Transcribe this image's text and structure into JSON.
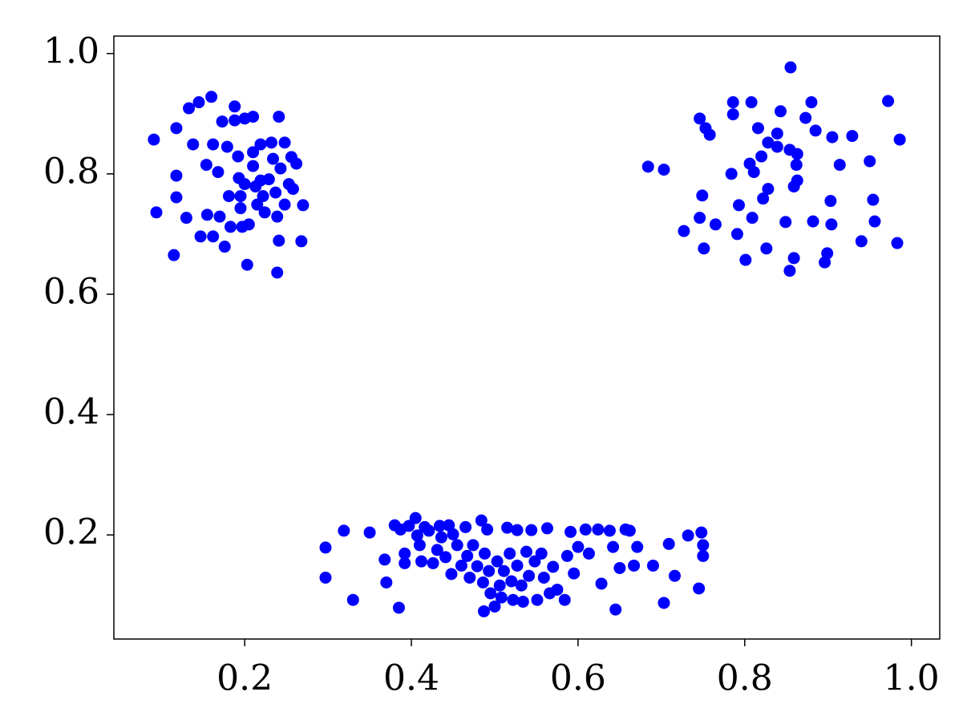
{
  "chart_data": {
    "type": "scatter",
    "color": "#0000ff",
    "x": [
      0.091,
      0.094,
      0.115,
      0.118,
      0.118,
      0.118,
      0.13,
      0.133,
      0.138,
      0.145,
      0.147,
      0.155,
      0.154,
      0.16,
      0.162,
      0.162,
      0.168,
      0.17,
      0.173,
      0.176,
      0.179,
      0.181,
      0.183,
      0.188,
      0.188,
      0.192,
      0.193,
      0.195,
      0.195,
      0.197,
      0.2,
      0.203,
      0.205,
      0.21,
      0.21,
      0.21,
      0.213,
      0.215,
      0.219,
      0.222,
      0.224,
      0.229,
      0.232,
      0.234,
      0.237,
      0.239,
      0.241,
      0.239,
      0.241,
      0.243,
      0.248,
      0.248,
      0.253,
      0.256,
      0.258,
      0.262,
      0.268,
      0.27,
      0.2,
      0.219,
      0.855,
      0.972,
      0.786,
      0.808,
      0.88,
      0.786,
      0.843,
      0.873,
      0.746,
      0.753,
      0.758,
      0.816,
      0.839,
      0.885,
      0.905,
      0.929,
      0.986,
      0.828,
      0.839,
      0.854,
      0.863,
      0.82,
      0.684,
      0.703,
      0.806,
      0.811,
      0.784,
      0.862,
      0.914,
      0.95,
      0.863,
      0.859,
      0.828,
      0.749,
      0.903,
      0.954,
      0.793,
      0.822,
      0.746,
      0.765,
      0.809,
      0.849,
      0.882,
      0.904,
      0.956,
      0.727,
      0.791,
      0.751,
      0.826,
      0.94,
      0.983,
      0.801,
      0.859,
      0.899,
      0.896,
      0.854,
      0.297,
      0.297,
      0.319,
      0.33,
      0.35,
      0.368,
      0.37,
      0.38,
      0.385,
      0.387,
      0.392,
      0.392,
      0.397,
      0.405,
      0.407,
      0.41,
      0.412,
      0.416,
      0.421,
      0.426,
      0.431,
      0.434,
      0.436,
      0.441,
      0.445,
      0.448,
      0.45,
      0.455,
      0.46,
      0.465,
      0.467,
      0.47,
      0.474,
      0.479,
      0.484,
      0.486,
      0.487,
      0.488,
      0.491,
      0.493,
      0.495,
      0.5,
      0.503,
      0.506,
      0.508,
      0.511,
      0.515,
      0.518,
      0.52,
      0.522,
      0.527,
      0.527,
      0.532,
      0.534,
      0.538,
      0.541,
      0.544,
      0.548,
      0.551,
      0.556,
      0.559,
      0.563,
      0.566,
      0.57,
      0.575,
      0.584,
      0.587,
      0.591,
      0.595,
      0.6,
      0.609,
      0.613,
      0.624,
      0.628,
      0.638,
      0.642,
      0.645,
      0.65,
      0.657,
      0.662,
      0.667,
      0.671,
      0.69,
      0.703,
      0.709,
      0.716,
      0.732,
      0.745,
      0.748,
      0.75,
      0.75
    ],
    "values": [
      0.857,
      0.736,
      0.665,
      0.876,
      0.797,
      0.761,
      0.727,
      0.909,
      0.849,
      0.919,
      0.696,
      0.732,
      0.815,
      0.928,
      0.849,
      0.696,
      0.803,
      0.729,
      0.887,
      0.679,
      0.845,
      0.763,
      0.712,
      0.912,
      0.889,
      0.829,
      0.793,
      0.763,
      0.743,
      0.712,
      0.892,
      0.649,
      0.716,
      0.895,
      0.836,
      0.813,
      0.779,
      0.749,
      0.849,
      0.763,
      0.736,
      0.791,
      0.852,
      0.825,
      0.769,
      0.729,
      0.895,
      0.636,
      0.689,
      0.809,
      0.852,
      0.749,
      0.783,
      0.828,
      0.775,
      0.817,
      0.688,
      0.748,
      0.783,
      0.789,
      0.977,
      0.921,
      0.919,
      0.919,
      0.919,
      0.899,
      0.904,
      0.893,
      0.892,
      0.876,
      0.865,
      0.876,
      0.867,
      0.872,
      0.861,
      0.863,
      0.857,
      0.852,
      0.845,
      0.84,
      0.833,
      0.829,
      0.812,
      0.807,
      0.817,
      0.803,
      0.8,
      0.815,
      0.815,
      0.821,
      0.789,
      0.779,
      0.775,
      0.764,
      0.755,
      0.757,
      0.748,
      0.759,
      0.727,
      0.716,
      0.727,
      0.72,
      0.721,
      0.716,
      0.721,
      0.705,
      0.7,
      0.676,
      0.676,
      0.688,
      0.685,
      0.657,
      0.66,
      0.668,
      0.653,
      0.639,
      0.179,
      0.129,
      0.207,
      0.092,
      0.204,
      0.159,
      0.121,
      0.216,
      0.079,
      0.209,
      0.169,
      0.153,
      0.215,
      0.228,
      0.199,
      0.183,
      0.156,
      0.213,
      0.207,
      0.153,
      0.175,
      0.215,
      0.196,
      0.163,
      0.216,
      0.135,
      0.201,
      0.183,
      0.149,
      0.213,
      0.165,
      0.129,
      0.183,
      0.148,
      0.224,
      0.121,
      0.073,
      0.169,
      0.209,
      0.14,
      0.103,
      0.081,
      0.156,
      0.116,
      0.096,
      0.14,
      0.212,
      0.169,
      0.123,
      0.092,
      0.208,
      0.149,
      0.116,
      0.089,
      0.172,
      0.132,
      0.208,
      0.156,
      0.092,
      0.169,
      0.129,
      0.211,
      0.103,
      0.147,
      0.109,
      0.092,
      0.165,
      0.205,
      0.136,
      0.18,
      0.209,
      0.169,
      0.209,
      0.119,
      0.207,
      0.18,
      0.076,
      0.145,
      0.209,
      0.207,
      0.149,
      0.18,
      0.149,
      0.087,
      0.185,
      0.132,
      0.199,
      0.111,
      0.204,
      0.183,
      0.165
    ],
    "xlim": [
      0.043,
      1.034
    ],
    "ylim": [
      0.027,
      1.029
    ],
    "xticks": [
      0.2,
      0.4,
      0.6,
      0.8,
      {
        "value": 1,
        "label": "1.0"
      }
    ],
    "yticks": [
      0.2,
      0.4,
      0.6,
      0.8,
      {
        "value": 1,
        "label": "1.0"
      }
    ],
    "grid": false
  }
}
